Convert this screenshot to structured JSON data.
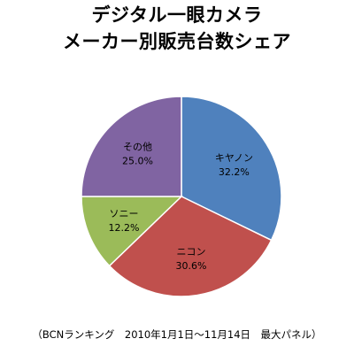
{
  "chart_data": {
    "type": "pie",
    "title_lines": [
      "デジタル一眼カメラ",
      "メーカー別販売台数シェア"
    ],
    "slices": [
      {
        "label": "キヤノン",
        "value": 32.2,
        "value_label": "32.2%",
        "color": "#4F81BD"
      },
      {
        "label": "ニコン",
        "value": 30.6,
        "value_label": "30.6%",
        "color": "#C0504D"
      },
      {
        "label": "ソニー",
        "value": 12.2,
        "value_label": "12.2%",
        "color": "#9BBB59"
      },
      {
        "label": "その他",
        "value": 25.0,
        "value_label": "25.0%",
        "color": "#8064A2"
      }
    ],
    "start": "12 o'clock",
    "direction": "clockwise",
    "legend": "none",
    "source_note": "（BCNランキング　2010年1月1日～11月14日　最大パネル）"
  }
}
